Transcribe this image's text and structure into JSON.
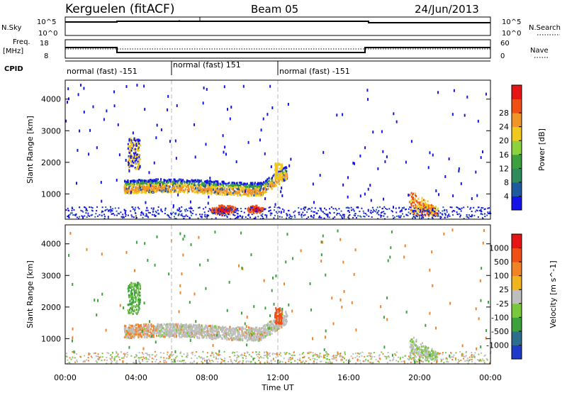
{
  "header": {
    "station": "Kerguelen (fitACF)",
    "beam": "Beam 05",
    "date": "24/Jun/2013"
  },
  "params": {
    "nsky_label": "N.Sky",
    "nsky_ticks": [
      "10^5",
      "10^0"
    ],
    "nsearch_label": "N.Search",
    "nsearch_ticks": [
      "10^5",
      "10^0"
    ],
    "freq_label_1": "Freq.",
    "freq_label_2": "[MHz]",
    "freq_ticks": [
      "18",
      "8"
    ],
    "nave_label": "Nave",
    "nave_ticks": [
      "60",
      "0"
    ],
    "cpid_label": "CPID",
    "cpid_segments": [
      "normal (fast) -151",
      "normal (fast) 151",
      "normal (fast) -151"
    ]
  },
  "chart_data": [
    {
      "type": "heatmap",
      "title": "",
      "ylabel": "Slant Range [km]",
      "yticks": [
        "1000",
        "2000",
        "3000",
        "4000"
      ],
      "ylim": [
        200,
        4600
      ],
      "colorbar_label": "Power [dB]",
      "colorbar_ticks": [
        "4",
        "8",
        "12",
        "16",
        "20",
        "24",
        "28"
      ],
      "colorbar_range": [
        0,
        30
      ],
      "palette": [
        "#1414e6",
        "#1e5aa0",
        "#2d8c5a",
        "#3ca03c",
        "#8cd23c",
        "#f0c81e",
        "#f09628",
        "#f05014",
        "#e61414"
      ],
      "annotations": {
        "dashed_vlines_hours": [
          6,
          12
        ]
      }
    },
    {
      "type": "heatmap",
      "title": "",
      "ylabel": "Slant Range [km]",
      "yticks": [
        "1000",
        "2000",
        "3000",
        "4000"
      ],
      "ylim": [
        200,
        4600
      ],
      "colorbar_label": "Velocity [m s^-1]",
      "colorbar_ticks": [
        "1000",
        "500",
        "100",
        "25",
        "-25",
        "-100",
        "-500",
        "-1000"
      ],
      "palette": [
        "#1e3cc8",
        "#2d6e8c",
        "#3ca03c",
        "#78c83c",
        "#bebebe",
        "#f0b41e",
        "#f08228",
        "#f05014",
        "#e61414"
      ],
      "annotations": {
        "dashed_vlines_hours": [
          6,
          12
        ]
      }
    }
  ],
  "xaxis": {
    "xlabel": "Time UT",
    "xticks": [
      "00:00",
      "04:00",
      "08:00",
      "12:00",
      "16:00",
      "20:00",
      "00:00"
    ],
    "xlim_hours": [
      0,
      24
    ]
  }
}
